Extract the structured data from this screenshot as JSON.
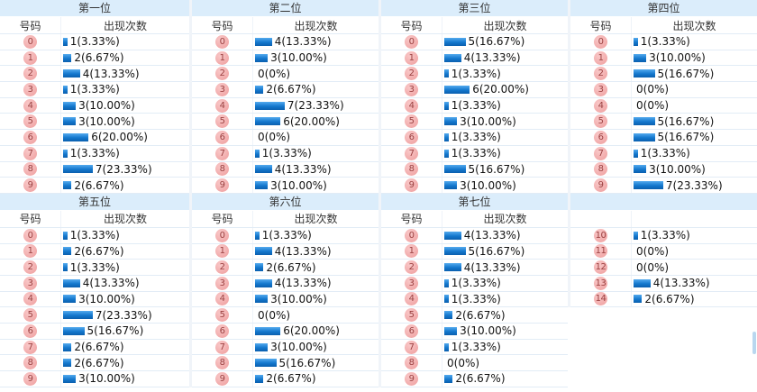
{
  "headers": {
    "number": "号码",
    "count": "出现次数"
  },
  "colors": {
    "band_bg": "#dbedfb",
    "bar_top": "#54aaee",
    "bar_mid": "#1377cd",
    "bar_bottom": "#0a5fae",
    "badge_light": "#f9c8c8",
    "badge_dark": "#ee9d9d",
    "badge_text": "#9b4040",
    "row_border": "#e2ecf6",
    "scroll_color": "#b9d7ef"
  },
  "tables": [
    {
      "title": "第一位",
      "show_header": true,
      "rows": [
        {
          "num": "0",
          "count": 1,
          "label": "1(3.33%)"
        },
        {
          "num": "1",
          "count": 2,
          "label": "2(6.67%)"
        },
        {
          "num": "2",
          "count": 4,
          "label": "4(13.33%)"
        },
        {
          "num": "3",
          "count": 1,
          "label": "1(3.33%)"
        },
        {
          "num": "4",
          "count": 3,
          "label": "3(10.00%)"
        },
        {
          "num": "5",
          "count": 3,
          "label": "3(10.00%)"
        },
        {
          "num": "6",
          "count": 6,
          "label": "6(20.00%)"
        },
        {
          "num": "7",
          "count": 1,
          "label": "1(3.33%)"
        },
        {
          "num": "8",
          "count": 7,
          "label": "7(23.33%)"
        },
        {
          "num": "9",
          "count": 2,
          "label": "2(6.67%)"
        }
      ]
    },
    {
      "title": "第二位",
      "show_header": true,
      "rows": [
        {
          "num": "0",
          "count": 4,
          "label": "4(13.33%)"
        },
        {
          "num": "1",
          "count": 3,
          "label": "3(10.00%)"
        },
        {
          "num": "2",
          "count": 0,
          "label": "0(0%)"
        },
        {
          "num": "3",
          "count": 2,
          "label": "2(6.67%)"
        },
        {
          "num": "4",
          "count": 7,
          "label": "7(23.33%)"
        },
        {
          "num": "5",
          "count": 6,
          "label": "6(20.00%)"
        },
        {
          "num": "6",
          "count": 0,
          "label": "0(0%)"
        },
        {
          "num": "7",
          "count": 1,
          "label": "1(3.33%)"
        },
        {
          "num": "8",
          "count": 4,
          "label": "4(13.33%)"
        },
        {
          "num": "9",
          "count": 3,
          "label": "3(10.00%)"
        }
      ]
    },
    {
      "title": "第三位",
      "show_header": true,
      "rows": [
        {
          "num": "0",
          "count": 5,
          "label": "5(16.67%)"
        },
        {
          "num": "1",
          "count": 4,
          "label": "4(13.33%)"
        },
        {
          "num": "2",
          "count": 1,
          "label": "1(3.33%)"
        },
        {
          "num": "3",
          "count": 6,
          "label": "6(20.00%)"
        },
        {
          "num": "4",
          "count": 1,
          "label": "1(3.33%)"
        },
        {
          "num": "5",
          "count": 3,
          "label": "3(10.00%)"
        },
        {
          "num": "6",
          "count": 1,
          "label": "1(3.33%)"
        },
        {
          "num": "7",
          "count": 1,
          "label": "1(3.33%)"
        },
        {
          "num": "8",
          "count": 5,
          "label": "5(16.67%)"
        },
        {
          "num": "9",
          "count": 3,
          "label": "3(10.00%)"
        }
      ]
    },
    {
      "title": "第四位",
      "show_header": true,
      "rows": [
        {
          "num": "0",
          "count": 1,
          "label": "1(3.33%)"
        },
        {
          "num": "1",
          "count": 3,
          "label": "3(10.00%)"
        },
        {
          "num": "2",
          "count": 5,
          "label": "5(16.67%)"
        },
        {
          "num": "3",
          "count": 0,
          "label": "0(0%)"
        },
        {
          "num": "4",
          "count": 0,
          "label": "0(0%)"
        },
        {
          "num": "5",
          "count": 5,
          "label": "5(16.67%)"
        },
        {
          "num": "6",
          "count": 5,
          "label": "5(16.67%)"
        },
        {
          "num": "7",
          "count": 1,
          "label": "1(3.33%)"
        },
        {
          "num": "8",
          "count": 3,
          "label": "3(10.00%)"
        },
        {
          "num": "9",
          "count": 7,
          "label": "7(23.33%)"
        }
      ]
    },
    {
      "title": "第五位",
      "show_header": true,
      "rows": [
        {
          "num": "0",
          "count": 1,
          "label": "1(3.33%)"
        },
        {
          "num": "1",
          "count": 2,
          "label": "2(6.67%)"
        },
        {
          "num": "2",
          "count": 1,
          "label": "1(3.33%)"
        },
        {
          "num": "3",
          "count": 4,
          "label": "4(13.33%)"
        },
        {
          "num": "4",
          "count": 3,
          "label": "3(10.00%)"
        },
        {
          "num": "5",
          "count": 7,
          "label": "7(23.33%)"
        },
        {
          "num": "6",
          "count": 5,
          "label": "5(16.67%)"
        },
        {
          "num": "7",
          "count": 2,
          "label": "2(6.67%)"
        },
        {
          "num": "8",
          "count": 2,
          "label": "2(6.67%)"
        },
        {
          "num": "9",
          "count": 3,
          "label": "3(10.00%)"
        }
      ]
    },
    {
      "title": "第六位",
      "show_header": true,
      "rows": [
        {
          "num": "0",
          "count": 1,
          "label": "1(3.33%)"
        },
        {
          "num": "1",
          "count": 4,
          "label": "4(13.33%)"
        },
        {
          "num": "2",
          "count": 2,
          "label": "2(6.67%)"
        },
        {
          "num": "3",
          "count": 4,
          "label": "4(13.33%)"
        },
        {
          "num": "4",
          "count": 3,
          "label": "3(10.00%)"
        },
        {
          "num": "5",
          "count": 0,
          "label": "0(0%)"
        },
        {
          "num": "6",
          "count": 6,
          "label": "6(20.00%)"
        },
        {
          "num": "7",
          "count": 3,
          "label": "3(10.00%)"
        },
        {
          "num": "8",
          "count": 5,
          "label": "5(16.67%)"
        },
        {
          "num": "9",
          "count": 2,
          "label": "2(6.67%)"
        }
      ]
    },
    {
      "title": "第七位",
      "show_header": true,
      "rows": [
        {
          "num": "0",
          "count": 4,
          "label": "4(13.33%)"
        },
        {
          "num": "1",
          "count": 5,
          "label": "5(16.67%)"
        },
        {
          "num": "2",
          "count": 4,
          "label": "4(13.33%)"
        },
        {
          "num": "3",
          "count": 1,
          "label": "1(3.33%)"
        },
        {
          "num": "4",
          "count": 1,
          "label": "1(3.33%)"
        },
        {
          "num": "5",
          "count": 2,
          "label": "2(6.67%)"
        },
        {
          "num": "6",
          "count": 3,
          "label": "3(10.00%)"
        },
        {
          "num": "7",
          "count": 1,
          "label": "1(3.33%)"
        },
        {
          "num": "8",
          "count": 0,
          "label": "0(0%)"
        },
        {
          "num": "9",
          "count": 2,
          "label": "2(6.67%)"
        }
      ]
    },
    {
      "title": "",
      "show_header": false,
      "rows": [
        {
          "num": "10",
          "count": 1,
          "label": "1(3.33%)"
        },
        {
          "num": "11",
          "count": 0,
          "label": "0(0%)"
        },
        {
          "num": "12",
          "count": 0,
          "label": "0(0%)"
        },
        {
          "num": "13",
          "count": 4,
          "label": "4(13.33%)"
        },
        {
          "num": "14",
          "count": 2,
          "label": "2(6.67%)"
        }
      ]
    }
  ],
  "chart_data": [
    {
      "type": "bar",
      "title": "第一位",
      "orientation": "horizontal",
      "xlabel": "号码",
      "ylabel": "出现次数",
      "categories": [
        "0",
        "1",
        "2",
        "3",
        "4",
        "5",
        "6",
        "7",
        "8",
        "9"
      ],
      "values": [
        1,
        2,
        4,
        1,
        3,
        3,
        6,
        1,
        7,
        2
      ],
      "percent_labels": [
        "3.33%",
        "6.67%",
        "13.33%",
        "3.33%",
        "10.00%",
        "10.00%",
        "20.00%",
        "3.33%",
        "23.33%",
        "6.67%"
      ]
    },
    {
      "type": "bar",
      "title": "第二位",
      "orientation": "horizontal",
      "xlabel": "号码",
      "ylabel": "出现次数",
      "categories": [
        "0",
        "1",
        "2",
        "3",
        "4",
        "5",
        "6",
        "7",
        "8",
        "9"
      ],
      "values": [
        4,
        3,
        0,
        2,
        7,
        6,
        0,
        1,
        4,
        3
      ],
      "percent_labels": [
        "13.33%",
        "10.00%",
        "0%",
        "6.67%",
        "23.33%",
        "20.00%",
        "0%",
        "3.33%",
        "13.33%",
        "10.00%"
      ]
    },
    {
      "type": "bar",
      "title": "第三位",
      "orientation": "horizontal",
      "xlabel": "号码",
      "ylabel": "出现次数",
      "categories": [
        "0",
        "1",
        "2",
        "3",
        "4",
        "5",
        "6",
        "7",
        "8",
        "9"
      ],
      "values": [
        5,
        4,
        1,
        6,
        1,
        3,
        1,
        1,
        5,
        3
      ],
      "percent_labels": [
        "16.67%",
        "13.33%",
        "3.33%",
        "20.00%",
        "3.33%",
        "10.00%",
        "3.33%",
        "3.33%",
        "16.67%",
        "10.00%"
      ]
    },
    {
      "type": "bar",
      "title": "第四位",
      "orientation": "horizontal",
      "xlabel": "号码",
      "ylabel": "出现次数",
      "categories": [
        "0",
        "1",
        "2",
        "3",
        "4",
        "5",
        "6",
        "7",
        "8",
        "9"
      ],
      "values": [
        1,
        3,
        5,
        0,
        0,
        5,
        5,
        1,
        3,
        7
      ],
      "percent_labels": [
        "3.33%",
        "10.00%",
        "16.67%",
        "0%",
        "0%",
        "16.67%",
        "16.67%",
        "3.33%",
        "10.00%",
        "23.33%"
      ]
    },
    {
      "type": "bar",
      "title": "第五位",
      "orientation": "horizontal",
      "xlabel": "号码",
      "ylabel": "出现次数",
      "categories": [
        "0",
        "1",
        "2",
        "3",
        "4",
        "5",
        "6",
        "7",
        "8",
        "9"
      ],
      "values": [
        1,
        2,
        1,
        4,
        3,
        7,
        5,
        2,
        2,
        3
      ],
      "percent_labels": [
        "3.33%",
        "6.67%",
        "3.33%",
        "13.33%",
        "10.00%",
        "23.33%",
        "16.67%",
        "6.67%",
        "6.67%",
        "10.00%"
      ]
    },
    {
      "type": "bar",
      "title": "第六位",
      "orientation": "horizontal",
      "xlabel": "号码",
      "ylabel": "出现次数",
      "categories": [
        "0",
        "1",
        "2",
        "3",
        "4",
        "5",
        "6",
        "7",
        "8",
        "9"
      ],
      "values": [
        1,
        4,
        2,
        4,
        3,
        0,
        6,
        3,
        5,
        2
      ],
      "percent_labels": [
        "3.33%",
        "13.33%",
        "6.67%",
        "13.33%",
        "10.00%",
        "0%",
        "20.00%",
        "10.00%",
        "16.67%",
        "6.67%"
      ]
    },
    {
      "type": "bar",
      "title": "第七位",
      "orientation": "horizontal",
      "xlabel": "号码",
      "ylabel": "出现次数",
      "categories": [
        "0",
        "1",
        "2",
        "3",
        "4",
        "5",
        "6",
        "7",
        "8",
        "9"
      ],
      "values": [
        4,
        5,
        4,
        1,
        1,
        2,
        3,
        1,
        0,
        2
      ],
      "percent_labels": [
        "13.33%",
        "16.67%",
        "13.33%",
        "3.33%",
        "3.33%",
        "6.67%",
        "10.00%",
        "3.33%",
        "0%",
        "6.67%"
      ]
    },
    {
      "type": "bar",
      "title": "",
      "orientation": "horizontal",
      "xlabel": "号码",
      "ylabel": "出现次数",
      "categories": [
        "10",
        "11",
        "12",
        "13",
        "14"
      ],
      "values": [
        1,
        0,
        0,
        4,
        2
      ],
      "percent_labels": [
        "3.33%",
        "0%",
        "0%",
        "13.33%",
        "6.67%"
      ]
    }
  ]
}
